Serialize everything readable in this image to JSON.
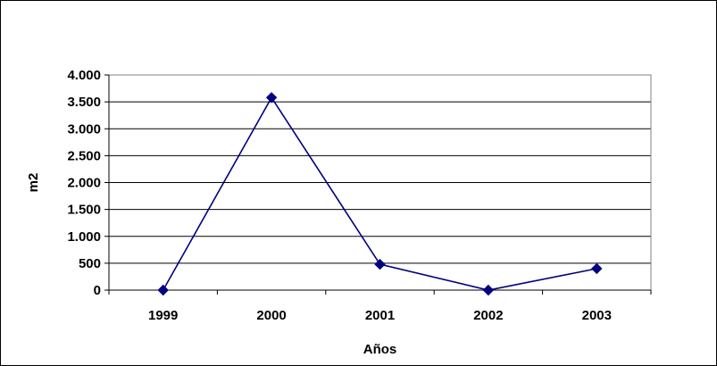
{
  "chart_data": {
    "type": "line",
    "title": "",
    "xlabel": "Años",
    "ylabel": "m2",
    "categories": [
      "1999",
      "2000",
      "2001",
      "2002",
      "2003"
    ],
    "series": [
      {
        "values": [
          0,
          3580,
          480,
          0,
          400
        ],
        "color": "#000080",
        "marker": "diamond"
      }
    ],
    "ylim": [
      0,
      4000
    ],
    "y_ticks": [
      0,
      500,
      1000,
      1500,
      2000,
      2500,
      3000,
      3500,
      4000
    ],
    "y_tick_labels": [
      "0",
      "500",
      "1.000",
      "1.500",
      "2.000",
      "2.500",
      "3.000",
      "3.500",
      "4.000"
    ],
    "grid": "horizontal",
    "legend": "none",
    "background": "#ffffff",
    "gridline_color": "#000000"
  }
}
